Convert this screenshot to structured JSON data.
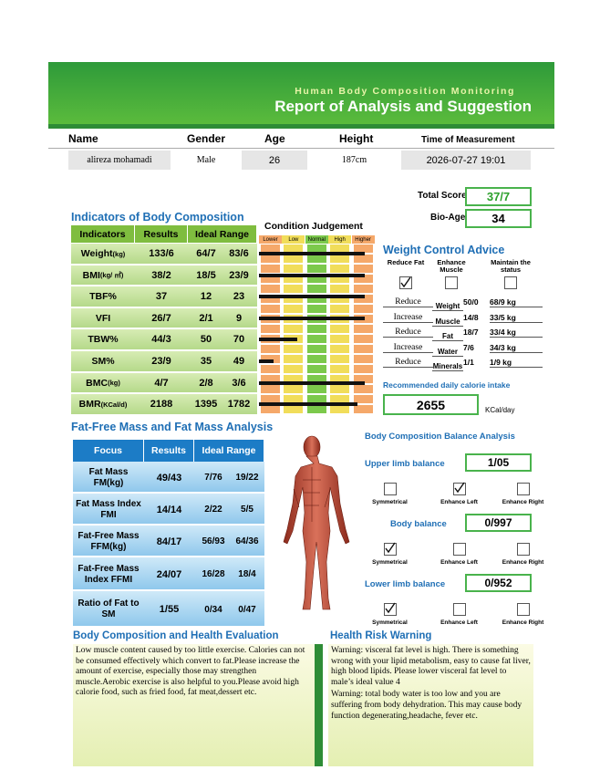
{
  "header": {
    "subtitle": "Human Body Composition Monitoring",
    "title": "Report of Analysis and Suggestion"
  },
  "person": {
    "labels": [
      "Name",
      "Gender",
      "Age",
      "Height",
      "Time of Measurement"
    ],
    "values": [
      "alireza mohamadi",
      "Male",
      "26",
      "187cm",
      "2026-07-27   19:01"
    ]
  },
  "scores": {
    "total_label": "Total Score",
    "total": "37/7",
    "bio_age_label": "Bio-Age",
    "bio_age": "34"
  },
  "indicators": {
    "title": "Indicators of Body Composition",
    "headers": [
      "Indicators",
      "Results",
      "Ideal Range"
    ],
    "rows": [
      {
        "name": "Weight",
        "unit": "(kg)",
        "result": "133/6",
        "low": "64/7",
        "high": "83/6"
      },
      {
        "name": "BMI",
        "unit": "(kg/ ㎡)",
        "result": "38/2",
        "low": "18/5",
        "high": "23/9"
      },
      {
        "name": "TBF%",
        "unit": "",
        "result": "37",
        "low": "12",
        "high": "23"
      },
      {
        "name": "VFI",
        "unit": "",
        "result": "26/7",
        "low": "2/1",
        "high": "9"
      },
      {
        "name": "TBW%",
        "unit": "",
        "result": "44/3",
        "low": "50",
        "high": "70"
      },
      {
        "name": "SM%",
        "unit": "",
        "result": "23/9",
        "low": "35",
        "high": "49"
      },
      {
        "name": "BMC",
        "unit": "(kg)",
        "result": "4/7",
        "low": "2/8",
        "high": "3/6"
      },
      {
        "name": "BMR",
        "unit": " (KCal/d)",
        "result": "2188",
        "low": "1395",
        "high": "1782"
      }
    ]
  },
  "condition": {
    "title": "Condition Judgement",
    "levels": [
      "Lower",
      "Low",
      "Normal",
      "High",
      "Higher"
    ]
  },
  "weight_control": {
    "title": "Weight Control Advice",
    "options": [
      "Reduce Fat",
      "Enhance Muscle",
      "Maintain the status"
    ],
    "rows": [
      {
        "action": "Reduce",
        "item": "Weight",
        "value": "50/0",
        "target": "68/9 kg"
      },
      {
        "action": "Increase",
        "item": "Muscle",
        "value": "14/8",
        "target": "33/5 kg"
      },
      {
        "action": "Reduce",
        "item": "Fat",
        "value": "18/7",
        "target": "33/4 kg"
      },
      {
        "action": "Increase",
        "item": "Water",
        "value": "7/6",
        "target": "34/3 kg"
      },
      {
        "action": "Reduce",
        "item": "Minerals",
        "value": "1/1",
        "target": "1/9 kg"
      }
    ]
  },
  "calorie": {
    "title": "Recommended daily calorie intake",
    "value": "2655",
    "unit": "KCal/day"
  },
  "fat_analysis": {
    "title": "Fat-Free Mass and Fat Mass Analysis",
    "headers": [
      "Focus",
      "Results",
      "Ideal Range"
    ],
    "rows": [
      {
        "focus": "Fat Mass FM(kg)",
        "result": "49/43",
        "low": "7/76",
        "high": "19/22"
      },
      {
        "focus": "Fat Mass Index FMI",
        "result": "14/14",
        "low": "2/22",
        "high": "5/5"
      },
      {
        "focus": "Fat-Free Mass FFM(kg)",
        "result": "84/17",
        "low": "56/93",
        "high": "64/36"
      },
      {
        "focus": "Fat-Free Mass Index FFMI",
        "result": "24/07",
        "low": "16/28",
        "high": "18/4"
      },
      {
        "focus": "Ratio of Fat to SM",
        "result": "1/55",
        "low": "0/34",
        "high": "0/47"
      }
    ]
  },
  "balance": {
    "title": "Body Composition Balance Analysis",
    "options": [
      "Symmetrical",
      "Enhance Left",
      "Enhance Right"
    ],
    "rows": [
      {
        "label": "Upper limb balance",
        "value": "1/05"
      },
      {
        "label": "Body balance",
        "value": "0/997"
      },
      {
        "label": "Lower limb balance",
        "value": "0/952"
      }
    ]
  },
  "evaluation": {
    "title": "Body Composition and Health Evaluation",
    "text": "Low muscle content caused by too little exercise. Calories can not be consumed effectively which convert to fat.Please increase the amount of exercise, especially those may strengthen muscle.Aerobic exercise is also helpful to you.Please avoid high calorie food, such as fried food, fat meat,dessert etc."
  },
  "warning": {
    "title": "Health Risk Warning",
    "paragraphs": [
      "Warning: visceral fat level is high. There is something wrong with your lipid metabolism, easy to cause fat liver, high blood lipids. Please lower visceral fat level to male’s ideal value 4",
      "Warning: total body water is too low and you are suffering from body dehydration. This may cause body function degenerating,headache, fever etc."
    ]
  }
}
